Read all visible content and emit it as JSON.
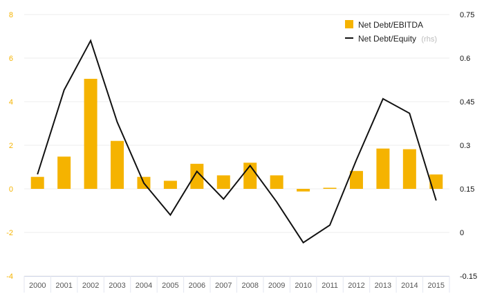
{
  "chart_data": {
    "type": "bar",
    "categories": [
      "2000",
      "2001",
      "2002",
      "2003",
      "2004",
      "2005",
      "2006",
      "2007",
      "2008",
      "2009",
      "2010",
      "2011",
      "2012",
      "2013",
      "2014",
      "2015"
    ],
    "series": [
      {
        "name": "Net Debt/EBITDA",
        "type": "bar",
        "axis": "left",
        "color": "#f5b300",
        "values": [
          0.55,
          1.48,
          5.05,
          2.2,
          0.55,
          0.37,
          1.15,
          0.62,
          1.2,
          0.62,
          -0.12,
          0.05,
          0.82,
          1.85,
          1.82,
          0.66
        ]
      },
      {
        "name": "Net Debt/Equity",
        "name_suffix": "(rhs)",
        "type": "line",
        "axis": "right",
        "color": "#111111",
        "values": [
          0.2,
          0.49,
          0.66,
          0.38,
          0.17,
          0.06,
          0.21,
          0.115,
          0.23,
          0.105,
          -0.035,
          0.025,
          0.25,
          0.46,
          0.41,
          0.11
        ]
      }
    ],
    "y_left": {
      "ylim": [
        -4,
        8
      ],
      "ticks": [
        "8",
        "6",
        "4",
        "2",
        "0",
        "-2",
        "-4"
      ],
      "tick_values": [
        8,
        6,
        4,
        2,
        0,
        -2,
        -4
      ],
      "tick_color": "#f5b300"
    },
    "y_right": {
      "ylim": [
        -0.15,
        0.75
      ],
      "ticks": [
        "0.75",
        "0.6",
        "0.45",
        "0.3",
        "0.15",
        "0",
        "-0.15"
      ],
      "tick_values": [
        0.75,
        0.6,
        0.45,
        0.3,
        0.15,
        0,
        -0.15
      ],
      "tick_color": "#111111"
    },
    "grid": true,
    "legend": {
      "position": "top-right"
    },
    "xaxis_color": "#e8ebf5"
  }
}
